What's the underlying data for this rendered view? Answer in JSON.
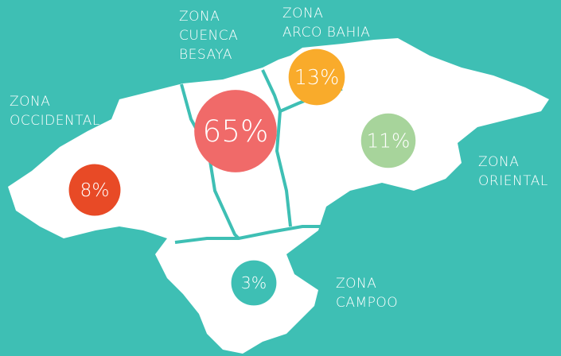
{
  "regions": [
    {
      "name": [
        "ZONA",
        "OCCIDENTAL"
      ],
      "value": 8,
      "value_label": "8%",
      "color": "#e84a26"
    },
    {
      "name": [
        "ZONA",
        "CUENCA",
        "BESAYA"
      ],
      "value": 65,
      "value_label": "65%",
      "color": "#f06a69"
    },
    {
      "name": [
        "ZONA",
        "ARCO BAHIA"
      ],
      "value": 13,
      "value_label": "13%",
      "color": "#f9ab2b"
    },
    {
      "name": [
        "ZONA",
        "ORIENTAL"
      ],
      "value": 11,
      "value_label": "11%",
      "color": "#a7d49b"
    },
    {
      "name": [
        "ZONA",
        "CAMPOO"
      ],
      "value": 3,
      "value_label": "3%",
      "color": "#3ebfb4"
    }
  ]
}
